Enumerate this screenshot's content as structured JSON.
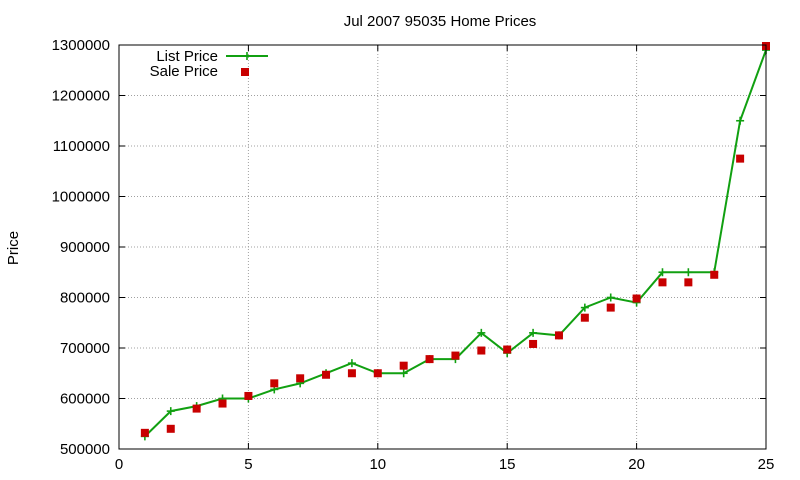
{
  "chart_data": {
    "type": "line",
    "title": "Jul 2007 95035 Home Prices",
    "xlabel": "",
    "ylabel": "Price",
    "xlim": [
      0,
      25
    ],
    "ylim": [
      500000,
      1300000
    ],
    "xticks": [
      0,
      5,
      10,
      15,
      20,
      25
    ],
    "yticks": [
      500000,
      600000,
      700000,
      800000,
      900000,
      1000000,
      1100000,
      1200000,
      1300000
    ],
    "grid": true,
    "legend_position": "top-left",
    "series": [
      {
        "name": "List Price",
        "style": "line+cross",
        "color": "#11a011",
        "x": [
          1,
          2,
          3,
          4,
          5,
          6,
          7,
          8,
          9,
          10,
          11,
          12,
          13,
          14,
          15,
          16,
          17,
          18,
          19,
          20,
          21,
          22,
          23,
          24,
          25
        ],
        "y": [
          525000,
          575000,
          585000,
          600000,
          600000,
          618000,
          630000,
          650000,
          670000,
          650000,
          650000,
          678000,
          678000,
          730000,
          690000,
          730000,
          725000,
          780000,
          800000,
          790000,
          850000,
          850000,
          850000,
          1150000,
          1290000
        ]
      },
      {
        "name": "Sale Price",
        "style": "square",
        "color": "#c80000",
        "x": [
          1,
          2,
          3,
          4,
          5,
          6,
          7,
          8,
          9,
          10,
          11,
          12,
          13,
          14,
          15,
          16,
          17,
          18,
          19,
          20,
          21,
          22,
          23,
          24,
          25
        ],
        "y": [
          532000,
          540000,
          580000,
          590000,
          605000,
          630000,
          640000,
          647000,
          650000,
          650000,
          665000,
          678000,
          685000,
          695000,
          697000,
          708000,
          725000,
          760000,
          780000,
          798000,
          830000,
          830000,
          845000,
          1075000,
          1298000
        ]
      }
    ]
  }
}
